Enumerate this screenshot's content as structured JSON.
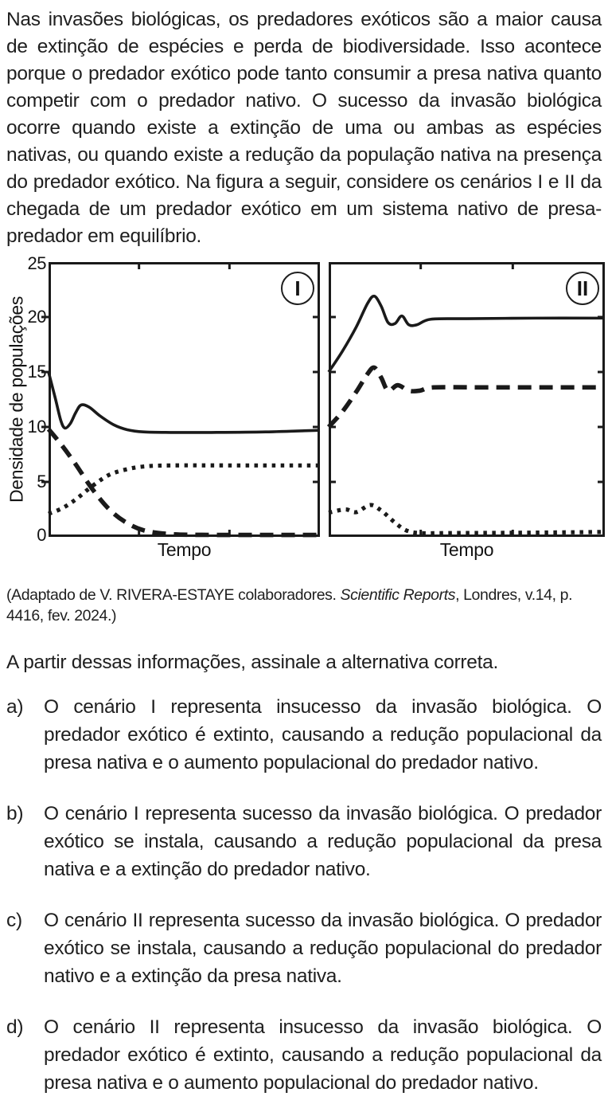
{
  "intro": "Nas invasões biológicas, os predadores exóticos são a maior causa de extinção de espécies e perda de biodiversidade. Isso acontece porque o predador exótico pode tanto consumir a presa nativa quanto competir com o predador nativo. O sucesso da invasão biológica ocorre quando existe a extinção de uma ou ambas as espécies nativas, ou quando existe a redução da população nativa na presença do predador exótico. Na figura a seguir, considere os cenários I e II da chegada de um predador exótico em um sistema nativo de presa-predador em equilíbrio.",
  "figure": {
    "ylabel": "Densidade de populações",
    "xlabel": "Tempo",
    "ytick_labels": [
      "0",
      "5",
      "10",
      "15",
      "20",
      "25"
    ],
    "line_color": "#1a1a1a"
  },
  "chart_data": [
    {
      "type": "line",
      "panel_label": "I",
      "xlabel": "Tempo",
      "ylabel": "Densidade de populações",
      "ylim": [
        0,
        25
      ],
      "yticks": [
        0,
        5,
        10,
        15,
        20,
        25
      ],
      "grid": false,
      "legend": "none",
      "series": [
        {
          "name": "linha-solida",
          "style": "solid",
          "points": [
            [
              0,
              15
            ],
            [
              0.025,
              12.6
            ],
            [
              0.045,
              10.6
            ],
            [
              0.06,
              9.9
            ],
            [
              0.08,
              10.3
            ],
            [
              0.1,
              11.3
            ],
            [
              0.12,
              12.0
            ],
            [
              0.15,
              11.8
            ],
            [
              0.19,
              11.0
            ],
            [
              0.24,
              10.2
            ],
            [
              0.29,
              9.75
            ],
            [
              0.35,
              9.55
            ],
            [
              0.45,
              9.5
            ],
            [
              0.6,
              9.5
            ],
            [
              0.8,
              9.55
            ],
            [
              1,
              9.7
            ]
          ]
        },
        {
          "name": "linha-tracejada",
          "style": "dashed",
          "points": [
            [
              0,
              9.8
            ],
            [
              0.05,
              8.3
            ],
            [
              0.1,
              6.6
            ],
            [
              0.16,
              4.4
            ],
            [
              0.22,
              2.6
            ],
            [
              0.28,
              1.4
            ],
            [
              0.35,
              0.6
            ],
            [
              0.45,
              0.25
            ],
            [
              0.6,
              0.18
            ],
            [
              0.8,
              0.18
            ],
            [
              1,
              0.18
            ]
          ]
        },
        {
          "name": "linha-pontilhada",
          "style": "dotted",
          "points": [
            [
              0,
              2.1
            ],
            [
              0.05,
              2.6
            ],
            [
              0.1,
              3.4
            ],
            [
              0.16,
              4.6
            ],
            [
              0.22,
              5.6
            ],
            [
              0.28,
              6.1
            ],
            [
              0.35,
              6.4
            ],
            [
              0.45,
              6.5
            ],
            [
              0.7,
              6.5
            ],
            [
              1,
              6.5
            ]
          ]
        }
      ]
    },
    {
      "type": "line",
      "panel_label": "II",
      "xlabel": "Tempo",
      "ylabel": "Densidade de populações",
      "ylim": [
        0,
        25
      ],
      "yticks": [
        0,
        5,
        10,
        15,
        20,
        25
      ],
      "grid": false,
      "legend": "none",
      "series": [
        {
          "name": "linha-solida",
          "style": "solid",
          "points": [
            [
              0,
              15
            ],
            [
              0.05,
              16.9
            ],
            [
              0.1,
              19.1
            ],
            [
              0.14,
              21.2
            ],
            [
              0.165,
              21.9
            ],
            [
              0.19,
              21.0
            ],
            [
              0.215,
              19.5
            ],
            [
              0.24,
              19.4
            ],
            [
              0.265,
              20.1
            ],
            [
              0.29,
              19.3
            ],
            [
              0.32,
              19.3
            ],
            [
              0.37,
              19.8
            ],
            [
              0.5,
              19.85
            ],
            [
              0.75,
              19.9
            ],
            [
              1,
              19.9
            ]
          ]
        },
        {
          "name": "linha-tracejada",
          "style": "dashed",
          "points": [
            [
              0,
              10
            ],
            [
              0.05,
              11.4
            ],
            [
              0.1,
              13.2
            ],
            [
              0.14,
              14.8
            ],
            [
              0.165,
              15.4
            ],
            [
              0.19,
              14.5
            ],
            [
              0.215,
              13.3
            ],
            [
              0.25,
              13.8
            ],
            [
              0.29,
              13.3
            ],
            [
              0.33,
              13.3
            ],
            [
              0.38,
              13.6
            ],
            [
              0.55,
              13.6
            ],
            [
              0.8,
              13.6
            ],
            [
              1,
              13.6
            ]
          ]
        },
        {
          "name": "linha-pontilhada",
          "style": "dotted",
          "points": [
            [
              0,
              2.2
            ],
            [
              0.06,
              2.5
            ],
            [
              0.1,
              2.25
            ],
            [
              0.15,
              2.9
            ],
            [
              0.19,
              2.4
            ],
            [
              0.24,
              1.3
            ],
            [
              0.28,
              0.6
            ],
            [
              0.33,
              0.35
            ],
            [
              0.45,
              0.35
            ],
            [
              0.7,
              0.38
            ],
            [
              1,
              0.45
            ]
          ]
        }
      ]
    }
  ],
  "citation": {
    "prefix": "(Adaptado de V. RIVERA-ESTAYE colaboradores. ",
    "italic": "Scientific Reports",
    "suffix": ", Londres, v.14, p. 4416, fev. 2024.)"
  },
  "question": "A partir dessas informações, assinale a alternativa correta.",
  "options": [
    {
      "letter": "a)",
      "text": "O cenário I representa insucesso da invasão biológica. O predador exótico é extinto, causando a redução populacional da presa nativa e o aumento populacional do predador nativo."
    },
    {
      "letter": "b)",
      "text": "O cenário I representa sucesso da invasão biológica. O predador exótico se instala, causando a redução populacional da presa nativa e a extinção do predador nativo."
    },
    {
      "letter": "c)",
      "text": "O cenário II representa sucesso da invasão biológica. O predador exótico se instala, causando a redução populacional do predador nativo e a extinção da presa nativa."
    },
    {
      "letter": "d)",
      "text": "O cenário II representa insucesso da invasão biológica. O predador exótico é extinto, causando a redução populacional da presa nativa e o aumento populacional do predador nativo."
    }
  ]
}
